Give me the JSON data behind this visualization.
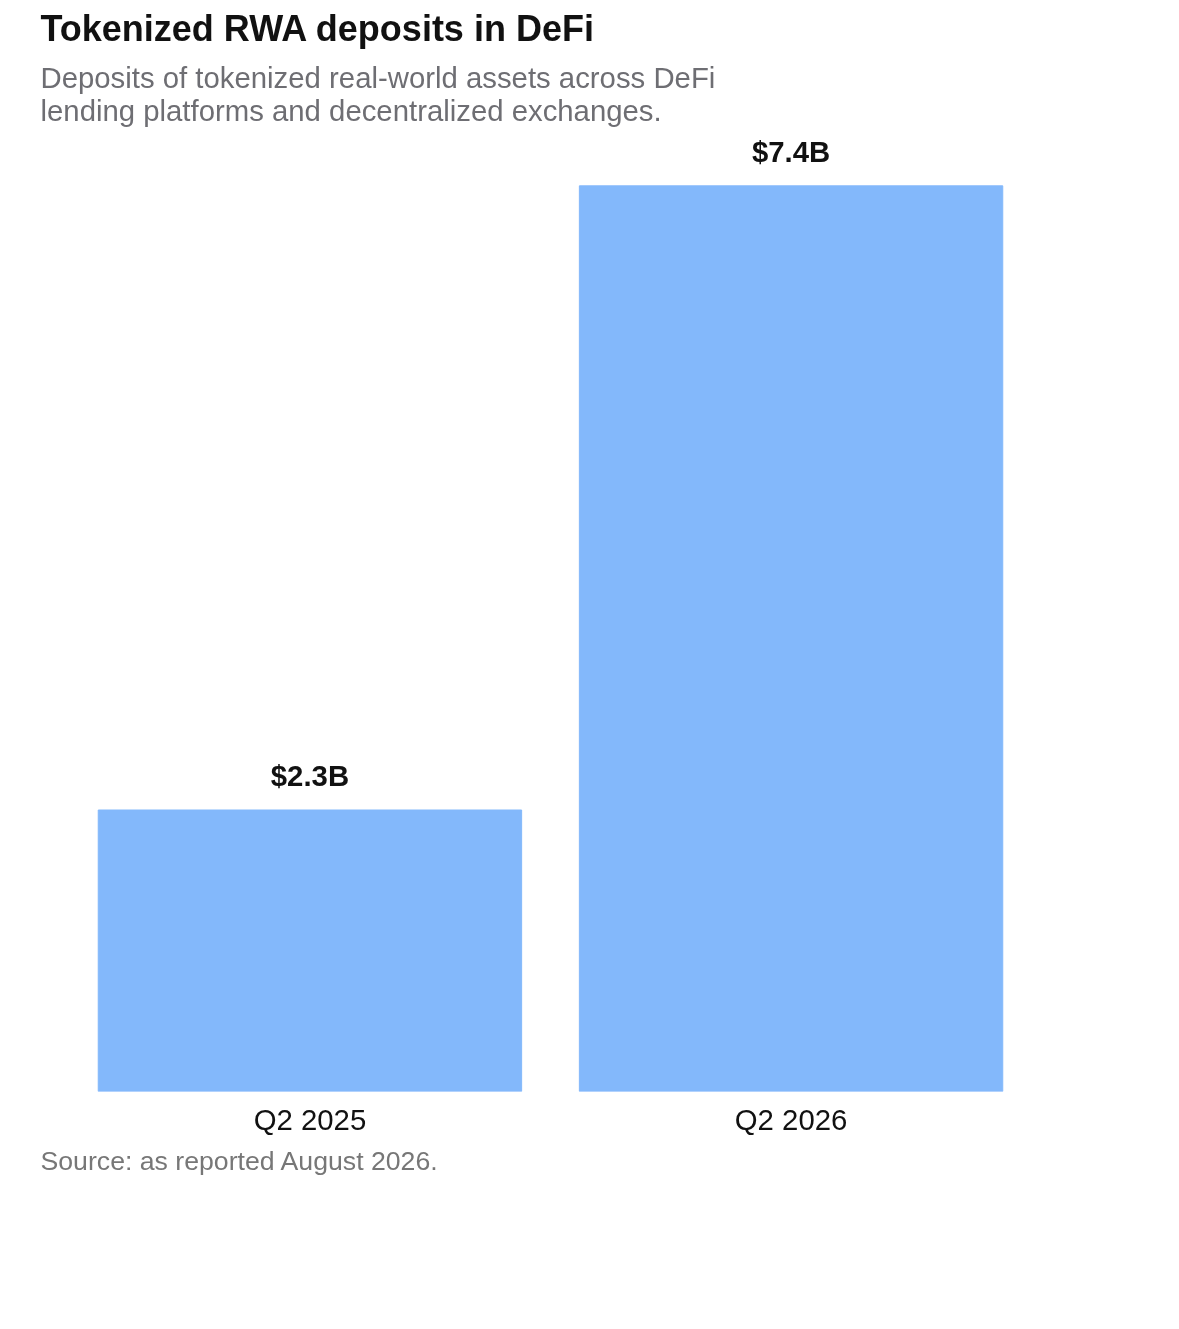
{
  "chart_data": {
    "type": "bar",
    "title": "Tokenized RWA deposits in DeFi",
    "subtitle": "Deposits of tokenized real-world assets across DeFi\nlending platforms and decentralized exchanges.",
    "categories": [
      "Q2 2025",
      "Q2 2026"
    ],
    "values": [
      2.3,
      7.4
    ],
    "value_labels": [
      "$2.3B",
      "$7.4B"
    ],
    "color": "#83b8fb",
    "tick_labels": "x",
    "annotations": [
      "Source: as reported August 2026."
    ]
  }
}
